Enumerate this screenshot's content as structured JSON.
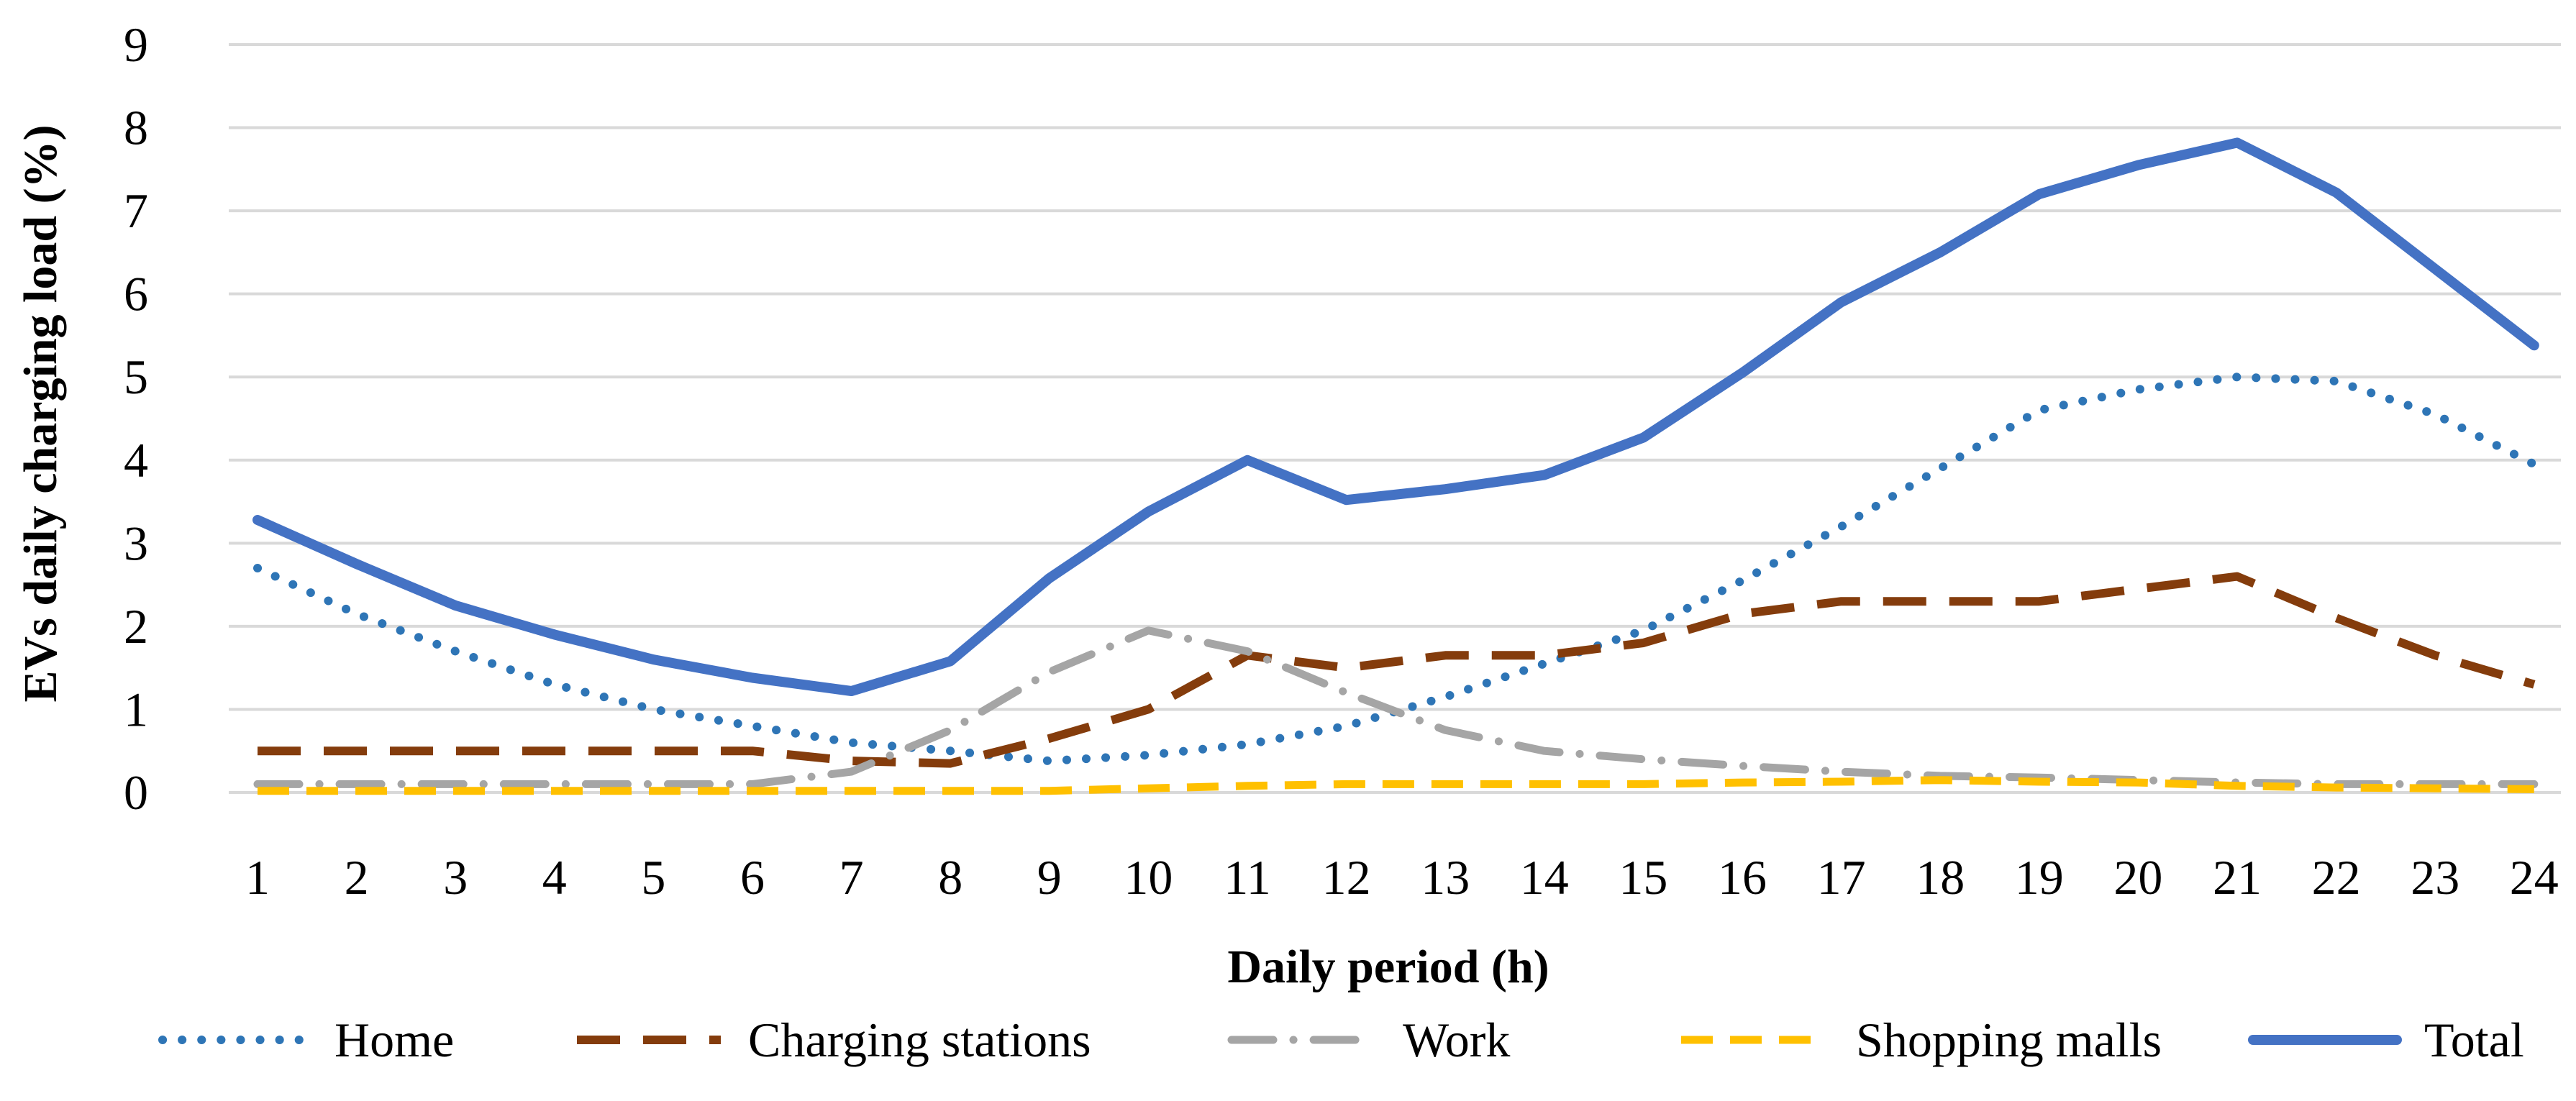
{
  "chart_data": {
    "type": "line",
    "title": "",
    "xlabel": "Daily period (h)",
    "ylabel": "EVs daily charging load (%)",
    "ylim": [
      0,
      9
    ],
    "yticks": [
      "0",
      "1",
      "2",
      "3",
      "4",
      "5",
      "6",
      "7",
      "8",
      "9"
    ],
    "categories": [
      "1",
      "2",
      "3",
      "4",
      "5",
      "6",
      "7",
      "8",
      "9",
      "10",
      "11",
      "12",
      "13",
      "14",
      "15",
      "16",
      "17",
      "18",
      "19",
      "20",
      "21",
      "22",
      "23",
      "24"
    ],
    "grid": true,
    "legend_position": "bottom",
    "series": [
      {
        "name": "Home",
        "color": "#2e75b6",
        "style": "dotted",
        "values": [
          2.7,
          2.15,
          1.7,
          1.3,
          1.0,
          0.8,
          0.6,
          0.5,
          0.38,
          0.45,
          0.58,
          0.8,
          1.15,
          1.55,
          1.95,
          2.55,
          3.2,
          3.9,
          4.6,
          4.85,
          5.0,
          4.95,
          4.55,
          3.95
        ]
      },
      {
        "name": "Charging stations",
        "color": "#843c0c",
        "style": "dashed",
        "values": [
          0.5,
          0.5,
          0.5,
          0.5,
          0.5,
          0.5,
          0.38,
          0.35,
          0.65,
          1.0,
          1.65,
          1.5,
          1.65,
          1.65,
          1.8,
          2.15,
          2.3,
          2.3,
          2.3,
          2.45,
          2.6,
          2.1,
          1.65,
          1.3
        ]
      },
      {
        "name": "Work",
        "color": "#a5a5a5",
        "style": "dashdot",
        "values": [
          0.1,
          0.1,
          0.1,
          0.1,
          0.1,
          0.1,
          0.25,
          0.75,
          1.45,
          1.95,
          1.7,
          1.2,
          0.75,
          0.5,
          0.4,
          0.32,
          0.25,
          0.2,
          0.18,
          0.15,
          0.12,
          0.1,
          0.1,
          0.1
        ]
      },
      {
        "name": "Shopping malls",
        "color": "#ffc000",
        "style": "dashed",
        "values": [
          0.02,
          0.02,
          0.02,
          0.02,
          0.02,
          0.02,
          0.02,
          0.02,
          0.02,
          0.05,
          0.08,
          0.1,
          0.1,
          0.1,
          0.1,
          0.12,
          0.13,
          0.15,
          0.13,
          0.12,
          0.08,
          0.06,
          0.05,
          0.04
        ]
      },
      {
        "name": "Total",
        "color": "#4472c4",
        "style": "solid",
        "values": [
          3.28,
          2.75,
          2.25,
          1.9,
          1.6,
          1.38,
          1.22,
          1.58,
          2.58,
          3.38,
          4.0,
          3.52,
          3.65,
          3.82,
          4.27,
          5.05,
          5.9,
          6.5,
          7.2,
          7.55,
          7.82,
          7.22,
          6.3,
          5.38
        ]
      }
    ]
  }
}
